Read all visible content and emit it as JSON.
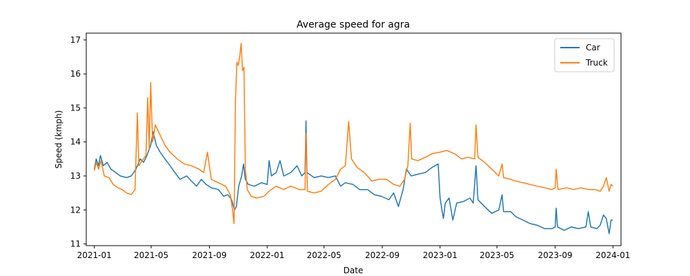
{
  "chart_data": {
    "type": "line",
    "title": "Average speed for agra",
    "xlabel": "Date",
    "ylabel": "Speed (kmph)",
    "xlim": [
      "2020-12-15",
      "2024-01-18"
    ],
    "ylim": [
      10.95,
      17.2
    ],
    "yticks": [
      11,
      12,
      13,
      14,
      15,
      16,
      17
    ],
    "xticks": [
      "2021-01",
      "2021-05",
      "2021-09",
      "2022-01",
      "2022-05",
      "2022-09",
      "2023-01",
      "2023-05",
      "2023-09",
      "2024-01"
    ],
    "legend_position": "top-right",
    "grid": false,
    "series": [
      {
        "name": "Car",
        "color": "#1f77b4",
        "points": [
          [
            "2021-01-01",
            13.2
          ],
          [
            "2021-01-05",
            13.5
          ],
          [
            "2021-01-10",
            13.3
          ],
          [
            "2021-01-14",
            13.6
          ],
          [
            "2021-01-20",
            13.3
          ],
          [
            "2021-01-28",
            13.4
          ],
          [
            "2021-02-05",
            13.2
          ],
          [
            "2021-02-15",
            13.1
          ],
          [
            "2021-02-25",
            13.0
          ],
          [
            "2021-03-10",
            12.95
          ],
          [
            "2021-03-20",
            13.0
          ],
          [
            "2021-03-30",
            13.2
          ],
          [
            "2021-04-08",
            13.5
          ],
          [
            "2021-04-15",
            13.4
          ],
          [
            "2021-04-22",
            13.6
          ],
          [
            "2021-04-30",
            13.9
          ],
          [
            "2021-05-05",
            14.3
          ],
          [
            "2021-05-12",
            13.9
          ],
          [
            "2021-05-20",
            13.7
          ],
          [
            "2021-05-30",
            13.5
          ],
          [
            "2021-06-10",
            13.3
          ],
          [
            "2021-06-20",
            13.1
          ],
          [
            "2021-07-01",
            12.9
          ],
          [
            "2021-07-15",
            13.0
          ],
          [
            "2021-07-25",
            12.85
          ],
          [
            "2021-08-05",
            12.7
          ],
          [
            "2021-08-15",
            12.9
          ],
          [
            "2021-08-25",
            12.75
          ],
          [
            "2021-09-05",
            12.65
          ],
          [
            "2021-09-20",
            12.6
          ],
          [
            "2021-10-01",
            12.4
          ],
          [
            "2021-10-10",
            12.45
          ],
          [
            "2021-10-18",
            12.3
          ],
          [
            "2021-10-24",
            12.0
          ],
          [
            "2021-10-28",
            12.1
          ],
          [
            "2021-11-02",
            12.7
          ],
          [
            "2021-11-08",
            13.0
          ],
          [
            "2021-11-12",
            13.35
          ],
          [
            "2021-11-16",
            12.9
          ],
          [
            "2021-11-22",
            12.75
          ],
          [
            "2021-12-05",
            12.7
          ],
          [
            "2021-12-20",
            12.8
          ],
          [
            "2022-01-01",
            12.75
          ],
          [
            "2022-01-05",
            13.45
          ],
          [
            "2022-01-10",
            13.0
          ],
          [
            "2022-01-20",
            13.1
          ],
          [
            "2022-01-28",
            13.45
          ],
          [
            "2022-02-05",
            13.0
          ],
          [
            "2022-02-20",
            13.1
          ],
          [
            "2022-03-05",
            13.3
          ],
          [
            "2022-03-15",
            13.0
          ],
          [
            "2022-03-22",
            13.1
          ],
          [
            "2022-03-24",
            14.62
          ],
          [
            "2022-03-26",
            13.1
          ],
          [
            "2022-04-10",
            12.95
          ],
          [
            "2022-04-25",
            13.0
          ],
          [
            "2022-05-10",
            12.95
          ],
          [
            "2022-05-25",
            13.0
          ],
          [
            "2022-06-05",
            12.7
          ],
          [
            "2022-06-15",
            12.8
          ],
          [
            "2022-07-01",
            12.75
          ],
          [
            "2022-07-15",
            12.6
          ],
          [
            "2022-08-01",
            12.6
          ],
          [
            "2022-08-15",
            12.45
          ],
          [
            "2022-08-30",
            12.4
          ],
          [
            "2022-09-15",
            12.3
          ],
          [
            "2022-09-25",
            12.5
          ],
          [
            "2022-10-05",
            12.1
          ],
          [
            "2022-10-15",
            12.6
          ],
          [
            "2022-10-22",
            13.2
          ],
          [
            "2022-11-01",
            13.0
          ],
          [
            "2022-11-15",
            13.05
          ],
          [
            "2022-12-01",
            13.1
          ],
          [
            "2022-12-15",
            13.25
          ],
          [
            "2022-12-28",
            13.35
          ],
          [
            "2023-01-01",
            12.35
          ],
          [
            "2023-01-05",
            12.0
          ],
          [
            "2023-01-08",
            11.75
          ],
          [
            "2023-01-12",
            12.2
          ],
          [
            "2023-01-20",
            12.35
          ],
          [
            "2023-01-28",
            11.7
          ],
          [
            "2023-02-05",
            12.2
          ],
          [
            "2023-02-20",
            12.25
          ],
          [
            "2023-03-05",
            12.35
          ],
          [
            "2023-03-12",
            12.2
          ],
          [
            "2023-03-18",
            13.3
          ],
          [
            "2023-03-22",
            12.3
          ],
          [
            "2023-04-05",
            12.1
          ],
          [
            "2023-04-20",
            11.9
          ],
          [
            "2023-05-05",
            12.0
          ],
          [
            "2023-05-12",
            12.45
          ],
          [
            "2023-05-15",
            11.95
          ],
          [
            "2023-05-30",
            11.95
          ],
          [
            "2023-06-10",
            11.8
          ],
          [
            "2023-06-25",
            11.7
          ],
          [
            "2023-07-10",
            11.6
          ],
          [
            "2023-07-25",
            11.55
          ],
          [
            "2023-08-10",
            11.45
          ],
          [
            "2023-08-25",
            11.45
          ],
          [
            "2023-09-01",
            11.5
          ],
          [
            "2023-09-03",
            12.05
          ],
          [
            "2023-09-06",
            11.5
          ],
          [
            "2023-09-20",
            11.4
          ],
          [
            "2023-10-05",
            11.5
          ],
          [
            "2023-10-20",
            11.45
          ],
          [
            "2023-11-05",
            11.5
          ],
          [
            "2023-11-10",
            11.95
          ],
          [
            "2023-11-15",
            11.5
          ],
          [
            "2023-11-28",
            11.45
          ],
          [
            "2023-12-05",
            11.55
          ],
          [
            "2023-12-12",
            11.85
          ],
          [
            "2023-12-18",
            11.75
          ],
          [
            "2023-12-24",
            11.3
          ],
          [
            "2023-12-28",
            11.7
          ],
          [
            "2024-01-01",
            11.7
          ]
        ]
      },
      {
        "name": "Truck",
        "color": "#ff7f0e",
        "points": [
          [
            "2021-01-01",
            13.15
          ],
          [
            "2021-01-05",
            13.4
          ],
          [
            "2021-01-10",
            13.2
          ],
          [
            "2021-01-15",
            13.45
          ],
          [
            "2021-01-22",
            13.0
          ],
          [
            "2021-02-01",
            12.95
          ],
          [
            "2021-02-10",
            12.75
          ],
          [
            "2021-02-20",
            12.65
          ],
          [
            "2021-03-01",
            12.6
          ],
          [
            "2021-03-10",
            12.5
          ],
          [
            "2021-03-20",
            12.45
          ],
          [
            "2021-03-28",
            12.6
          ],
          [
            "2021-04-02",
            14.85
          ],
          [
            "2021-04-05",
            13.3
          ],
          [
            "2021-04-12",
            13.45
          ],
          [
            "2021-04-20",
            13.6
          ],
          [
            "2021-04-24",
            15.3
          ],
          [
            "2021-04-27",
            13.8
          ],
          [
            "2021-04-30",
            15.75
          ],
          [
            "2021-05-04",
            14.0
          ],
          [
            "2021-05-10",
            14.5
          ],
          [
            "2021-05-20",
            14.2
          ],
          [
            "2021-05-30",
            13.9
          ],
          [
            "2021-06-10",
            13.7
          ],
          [
            "2021-06-25",
            13.5
          ],
          [
            "2021-07-10",
            13.35
          ],
          [
            "2021-07-25",
            13.3
          ],
          [
            "2021-08-10",
            13.2
          ],
          [
            "2021-08-20",
            13.1
          ],
          [
            "2021-08-28",
            13.7
          ],
          [
            "2021-09-05",
            12.9
          ],
          [
            "2021-09-20",
            12.8
          ],
          [
            "2021-10-05",
            12.7
          ],
          [
            "2021-10-15",
            12.45
          ],
          [
            "2021-10-20",
            12.0
          ],
          [
            "2021-10-23",
            11.6
          ],
          [
            "2021-10-26",
            15.2
          ],
          [
            "2021-10-29",
            16.35
          ],
          [
            "2021-11-01",
            16.25
          ],
          [
            "2021-11-04",
            16.5
          ],
          [
            "2021-11-07",
            16.9
          ],
          [
            "2021-11-10",
            16.1
          ],
          [
            "2021-11-13",
            16.2
          ],
          [
            "2021-11-16",
            13.2
          ],
          [
            "2021-11-20",
            12.6
          ],
          [
            "2021-11-28",
            12.4
          ],
          [
            "2021-12-10",
            12.35
          ],
          [
            "2021-12-25",
            12.4
          ],
          [
            "2022-01-05",
            12.55
          ],
          [
            "2022-01-20",
            12.7
          ],
          [
            "2022-02-05",
            12.6
          ],
          [
            "2022-02-20",
            12.7
          ],
          [
            "2022-03-10",
            12.6
          ],
          [
            "2022-03-22",
            12.6
          ],
          [
            "2022-03-24",
            14.25
          ],
          [
            "2022-03-27",
            12.55
          ],
          [
            "2022-04-10",
            12.5
          ],
          [
            "2022-04-25",
            12.55
          ],
          [
            "2022-05-10",
            12.75
          ],
          [
            "2022-05-25",
            12.9
          ],
          [
            "2022-06-05",
            13.2
          ],
          [
            "2022-06-15",
            13.3
          ],
          [
            "2022-06-22",
            14.6
          ],
          [
            "2022-06-28",
            13.5
          ],
          [
            "2022-07-10",
            13.25
          ],
          [
            "2022-07-25",
            13.1
          ],
          [
            "2022-08-10",
            12.85
          ],
          [
            "2022-08-25",
            12.9
          ],
          [
            "2022-09-10",
            12.9
          ],
          [
            "2022-09-25",
            12.75
          ],
          [
            "2022-10-08",
            12.7
          ],
          [
            "2022-10-18",
            12.9
          ],
          [
            "2022-10-25",
            13.3
          ],
          [
            "2022-10-30",
            14.55
          ],
          [
            "2022-11-02",
            13.5
          ],
          [
            "2022-11-15",
            13.45
          ],
          [
            "2022-12-01",
            13.55
          ],
          [
            "2022-12-15",
            13.65
          ],
          [
            "2023-01-01",
            13.7
          ],
          [
            "2023-01-15",
            13.75
          ],
          [
            "2023-02-01",
            13.65
          ],
          [
            "2023-02-15",
            13.5
          ],
          [
            "2023-03-01",
            13.55
          ],
          [
            "2023-03-15",
            13.5
          ],
          [
            "2023-03-18",
            14.5
          ],
          [
            "2023-03-22",
            13.55
          ],
          [
            "2023-04-05",
            13.4
          ],
          [
            "2023-04-20",
            13.2
          ],
          [
            "2023-05-05",
            13.0
          ],
          [
            "2023-05-12",
            13.35
          ],
          [
            "2023-05-15",
            12.95
          ],
          [
            "2023-05-30",
            12.9
          ],
          [
            "2023-06-10",
            12.85
          ],
          [
            "2023-06-25",
            12.8
          ],
          [
            "2023-07-10",
            12.75
          ],
          [
            "2023-07-25",
            12.7
          ],
          [
            "2023-08-10",
            12.65
          ],
          [
            "2023-08-25",
            12.6
          ],
          [
            "2023-09-01",
            12.65
          ],
          [
            "2023-09-03",
            13.2
          ],
          [
            "2023-09-07",
            12.6
          ],
          [
            "2023-09-25",
            12.65
          ],
          [
            "2023-10-10",
            12.6
          ],
          [
            "2023-10-25",
            12.65
          ],
          [
            "2023-11-10",
            12.6
          ],
          [
            "2023-11-25",
            12.6
          ],
          [
            "2023-12-05",
            12.55
          ],
          [
            "2023-12-12",
            12.7
          ],
          [
            "2023-12-18",
            12.95
          ],
          [
            "2023-12-24",
            12.55
          ],
          [
            "2023-12-28",
            12.75
          ],
          [
            "2024-01-01",
            12.7
          ]
        ]
      }
    ]
  }
}
